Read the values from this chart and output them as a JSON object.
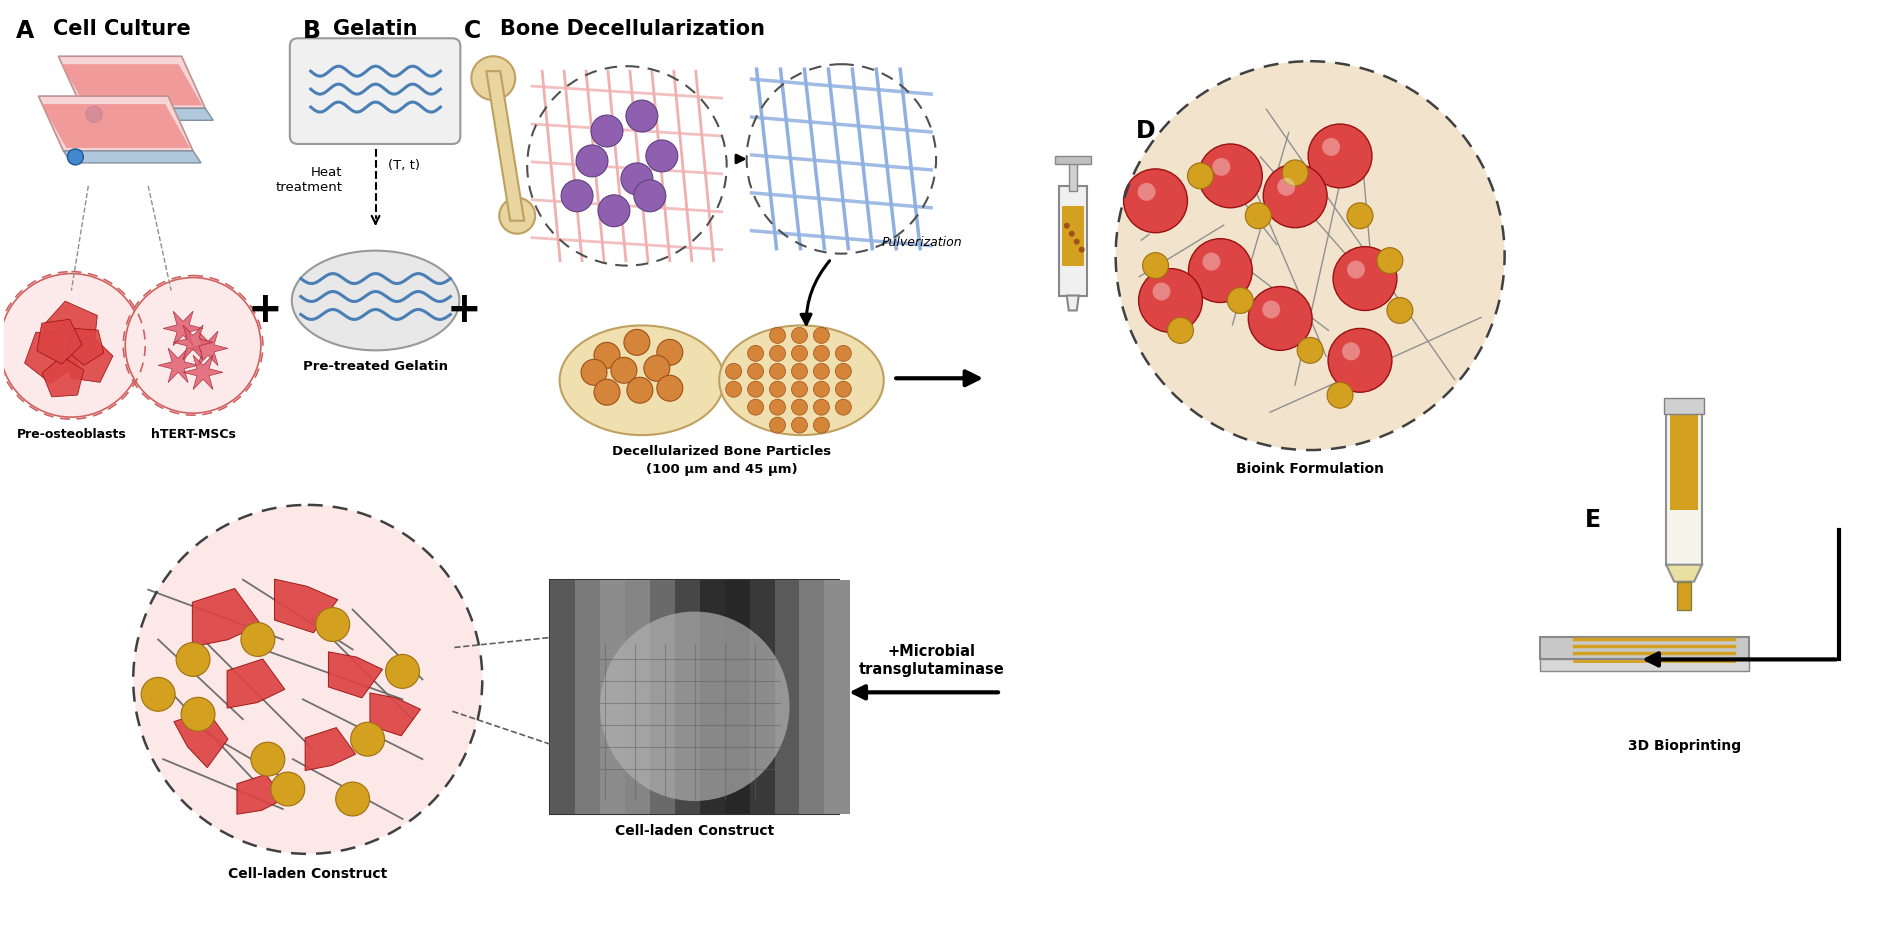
{
  "fig_width": 18.9,
  "fig_height": 9.35,
  "dpi": 100,
  "colors": {
    "white": "#ffffff",
    "black": "#000000",
    "dark_gray": "#404040",
    "mid_gray": "#808080",
    "light_gray": "#d0d0d0",
    "pink_bg": "#fceaea",
    "pink_cell": "#e05050",
    "pink_cell_dark": "#a02020",
    "pink_light": "#f5c0c0",
    "red_bright": "#cc3333",
    "blue_wavy": "#4a7fb5",
    "gelatin_bg": "#ebebeb",
    "gelatin_border": "#999999",
    "purple_cell": "#9060b0",
    "purple_dark": "#604080",
    "bone_color": "#e8d5a0",
    "bone_dark": "#c0a060",
    "fiber_pink": "#e8b0b0",
    "fiber_blue": "#a0b8e0",
    "orange_particle": "#d4853a",
    "orange_dark": "#a05018",
    "tan_bg": "#f0e0b0",
    "bioink_bg": "#f2e4cc",
    "gold_particle": "#d4a020",
    "gold_dark": "#a07010",
    "cell_red": "#dd4444",
    "cell_red_dark": "#991111",
    "blue_cap": "#4488cc",
    "blue_cap_dark": "#2255aa",
    "flask_pink": "#f0c0c0",
    "flask_dark": "#c09090",
    "syringe_gray": "#e8e8e8",
    "platform_gray": "#c0c0c0",
    "yellow_ink": "#d4a020",
    "arrow_black": "#111111"
  },
  "labels": {
    "A": "A",
    "A_title": "Cell Culture",
    "B": "B",
    "B_title": "Gelatin",
    "C": "C",
    "C_title": "Bone Decellularization",
    "D": "D",
    "D_title": "Bioink Formulation",
    "E": "E",
    "E_title": "3D Bioprinting",
    "pre_osteoblasts": "Pre-osteoblasts",
    "hTERT": "hTERT-MSCs",
    "pre_treated": "Pre-treated Gelatin",
    "heat_treatment": "Heat\ntreatment",
    "T_t": "(T, t)",
    "pulverization": "Pulverization",
    "decell": "Decellularized Bone Particles\n(100 µm and 45 µm)",
    "cell_laden": "Cell-laden Construct",
    "microbial": "+Microbial\ntransglutaminase"
  }
}
